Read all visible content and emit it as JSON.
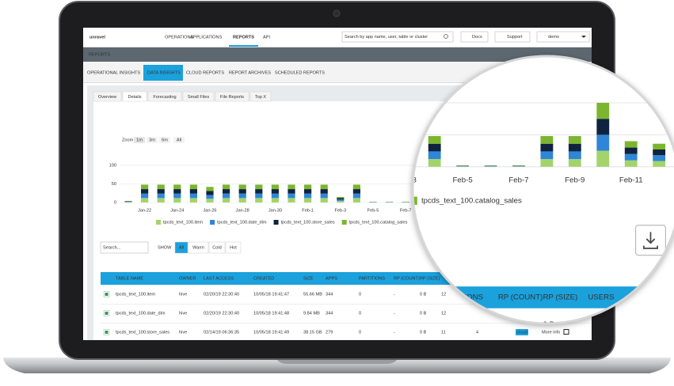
{
  "nav": {
    "logo": "unravel",
    "items": [
      "OPERATIONS",
      "APPLICATIONS",
      "REPORTS",
      "API"
    ],
    "search": "Search by app name, user, table or cluster",
    "docs": "Docs",
    "support": "Support",
    "user": "demo"
  },
  "section_title": "REPORTS",
  "tabs": [
    "OPERATIONAL INSIGHTS",
    "DATA INSIGHTS",
    "CLOUD REPORTS",
    "REPORT ARCHIVES",
    "SCHEDULED REPORTS"
  ],
  "subtabs": [
    "Overview",
    "Details",
    "Forecasting",
    "Small Files",
    "File Reports",
    "Top X"
  ],
  "zoom": {
    "label": "Zoom",
    "options": [
      "1m",
      "3m",
      "6m",
      "All"
    ]
  },
  "chart_data": {
    "type": "bar",
    "stacked": true,
    "categories": [
      null,
      "Jan-22",
      null,
      "Jan-24",
      null,
      "Jan-26",
      null,
      "Jan-28",
      null,
      "Jan-30",
      null,
      "Feb-1",
      null,
      "Feb-3",
      null,
      "Feb-5",
      null,
      "Feb-7",
      null,
      "Feb-9",
      null,
      "Feb-11",
      null
    ],
    "series": [
      {
        "name": "tpcds_text_100.item",
        "color": "#a3d46b",
        "values": [
          1,
          12,
          12,
          12,
          12,
          10,
          12,
          12,
          12,
          12,
          12,
          12,
          12,
          4,
          12,
          0.5,
          0.5,
          0.5,
          12,
          12,
          25,
          10,
          9
        ]
      },
      {
        "name": "tpcds_text_100.date_dim",
        "color": "#2f86d8",
        "values": [
          1,
          12,
          12,
          12,
          12,
          10,
          12,
          12,
          12,
          12,
          12,
          12,
          12,
          4,
          12,
          0.5,
          0.5,
          0.5,
          12,
          12,
          25,
          10,
          9
        ]
      },
      {
        "name": "tpcds_text_100.store_sales",
        "color": "#0f2340",
        "values": [
          1,
          12,
          12,
          12,
          12,
          11,
          12,
          12,
          12,
          12,
          12,
          12,
          12,
          4,
          12,
          0.5,
          0.5,
          0.5,
          12,
          12,
          25,
          10,
          9
        ]
      },
      {
        "name": "tpcds_text_100.catalog_sales",
        "color": "#7bb62e",
        "values": [
          1,
          12,
          12,
          12,
          12,
          11,
          12,
          12,
          12,
          12,
          12,
          12,
          12,
          3,
          12,
          0.5,
          0.5,
          0.5,
          12,
          12,
          25,
          10,
          9
        ]
      }
    ],
    "ylim": [
      0,
      100
    ],
    "yticks": [
      0,
      50,
      100
    ],
    "grid": true,
    "legend": "bottom"
  },
  "filters": {
    "search": "Search...",
    "show": "SHOW",
    "options": [
      "All",
      "Warm",
      "Cold",
      "Hot"
    ]
  },
  "table": {
    "columns": [
      "TABLE NAME",
      "OWNER",
      "LAST ACCESS",
      "CREATED",
      "SIZE",
      "APPS",
      "PARTITIONS",
      "RP (COUNT)",
      "RP (SIZE)",
      "USERS"
    ],
    "rows": [
      [
        "tpcds_text_100.item",
        "hive",
        "02/20/19 22:30:40",
        "10/05/18 19:41:47",
        "55.66 MB",
        "344",
        "0",
        "-",
        "0 B",
        "12"
      ],
      [
        "tpcds_text_100.date_dim",
        "hive",
        "02/20/19 22:30:40",
        "10/05/18 19:41:48",
        "9.84 MB",
        "344",
        "0",
        "-",
        "0 B",
        "12"
      ],
      [
        "tpcds_text_100.store_sales",
        "hive",
        "02/14/19 06:36:35",
        "10/05/18 19:41:49",
        "38.15 GB",
        "279",
        "0",
        "-",
        "0 B",
        "11",
        "4",
        "cloud",
        "More info"
      ]
    ]
  }
}
